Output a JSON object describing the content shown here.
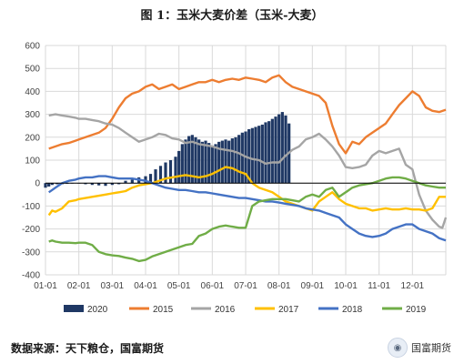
{
  "header": {
    "title": "图 1：玉米大麦价差（玉米-大麦）"
  },
  "footer": {
    "source": "数据来源：天下粮仓，国富期货",
    "brand": "国富期货",
    "brand_icon": "wechat-icon"
  },
  "colors": {
    "2020": "#1f3864",
    "2015": "#ed7d31",
    "2016": "#a5a5a5",
    "2017": "#ffc000",
    "2018": "#4472c4",
    "2019": "#70ad47",
    "grid": "#d9d9d9",
    "zero_line": "#000000"
  },
  "chart_data": {
    "type": "line",
    "title": "",
    "xlabel": "",
    "ylabel": "",
    "x_tick_labels": [
      "01-01",
      "02-01",
      "03-01",
      "04-01",
      "05-01",
      "06-01",
      "07-01",
      "08-01",
      "09-01",
      "10-01",
      "11-01",
      "12-01"
    ],
    "y_ticks": [
      600,
      500,
      400,
      300,
      200,
      100,
      0,
      -100,
      -200,
      -300,
      -400
    ],
    "ylim": [
      -400,
      600
    ],
    "x_unit": "month (1 = 01-01 … 13 = end of year)",
    "grid": true,
    "legend_position": "bottom",
    "legend": [
      "2020",
      "2015",
      "2016",
      "2017",
      "2018",
      "2019"
    ],
    "bar_series": {
      "name": "2020",
      "x": [
        1.0,
        1.1,
        1.2,
        1.35,
        1.5,
        1.65,
        1.8,
        2.0,
        2.2,
        2.4,
        2.6,
        2.8,
        3.0,
        3.2,
        3.4,
        3.6,
        3.8,
        4.0,
        4.15,
        4.3,
        4.45,
        4.6,
        4.75,
        4.9,
        5.0,
        5.1,
        5.2,
        5.3,
        5.4,
        5.5,
        5.6,
        5.7,
        5.8,
        5.9,
        6.0,
        6.1,
        6.2,
        6.3,
        6.4,
        6.5,
        6.6,
        6.7,
        6.8,
        6.9,
        7.0,
        7.1,
        7.2,
        7.3,
        7.4,
        7.5,
        7.6,
        7.7,
        7.8,
        7.9,
        8.0,
        8.1,
        8.2,
        8.3
      ],
      "values": [
        -20,
        -15,
        -8,
        -5,
        -5,
        -3,
        -2,
        0,
        -5,
        -8,
        -10,
        -12,
        -8,
        -5,
        10,
        15,
        25,
        30,
        40,
        60,
        75,
        90,
        100,
        115,
        140,
        170,
        190,
        205,
        210,
        200,
        190,
        180,
        185,
        175,
        160,
        170,
        180,
        185,
        190,
        185,
        195,
        200,
        210,
        220,
        225,
        235,
        240,
        245,
        250,
        255,
        265,
        270,
        280,
        290,
        300,
        310,
        295,
        260
      ]
    },
    "series": [
      {
        "name": "2015",
        "x": [
          1.1,
          1.2,
          1.3,
          1.5,
          1.7,
          1.9,
          2.0,
          2.2,
          2.4,
          2.6,
          2.8,
          3.0,
          3.2,
          3.4,
          3.6,
          3.8,
          4.0,
          4.2,
          4.4,
          4.6,
          4.8,
          5.0,
          5.2,
          5.4,
          5.6,
          5.8,
          6.0,
          6.2,
          6.4,
          6.6,
          6.8,
          7.0,
          7.2,
          7.4,
          7.6,
          7.8,
          8.0,
          8.2,
          8.4,
          8.6,
          8.8,
          9.0,
          9.2,
          9.4,
          9.6,
          9.8,
          10.0,
          10.2,
          10.4,
          10.6,
          10.8,
          11.0,
          11.2,
          11.4,
          11.6,
          11.8,
          12.0,
          12.2,
          12.4,
          12.6,
          12.8,
          13.0
        ],
        "values": [
          150,
          155,
          160,
          170,
          175,
          185,
          190,
          200,
          210,
          220,
          240,
          280,
          330,
          370,
          390,
          400,
          420,
          430,
          410,
          420,
          430,
          410,
          420,
          430,
          440,
          440,
          450,
          440,
          450,
          455,
          450,
          460,
          455,
          450,
          440,
          460,
          470,
          440,
          420,
          410,
          400,
          390,
          380,
          350,
          250,
          170,
          130,
          180,
          170,
          200,
          220,
          240,
          260,
          300,
          340,
          370,
          400,
          380,
          330,
          315,
          310,
          320
        ]
      },
      {
        "name": "2016",
        "x": [
          1.1,
          1.3,
          1.5,
          1.7,
          1.9,
          2.0,
          2.2,
          2.4,
          2.6,
          2.8,
          3.0,
          3.2,
          3.4,
          3.6,
          3.8,
          4.0,
          4.2,
          4.4,
          4.6,
          4.8,
          5.0,
          5.2,
          5.4,
          5.6,
          5.8,
          6.0,
          6.2,
          6.4,
          6.6,
          6.8,
          7.0,
          7.2,
          7.4,
          7.6,
          7.8,
          8.0,
          8.2,
          8.4,
          8.6,
          8.8,
          9.0,
          9.2,
          9.4,
          9.6,
          9.8,
          10.0,
          10.2,
          10.4,
          10.6,
          10.8,
          11.0,
          11.2,
          11.4,
          11.6,
          11.8,
          12.0,
          12.2,
          12.4,
          12.6,
          12.8,
          12.9,
          13.0
        ],
        "values": [
          295,
          300,
          295,
          290,
          285,
          280,
          280,
          275,
          270,
          260,
          255,
          240,
          220,
          200,
          180,
          190,
          200,
          215,
          210,
          195,
          190,
          175,
          180,
          170,
          165,
          160,
          150,
          145,
          140,
          130,
          115,
          105,
          100,
          85,
          90,
          90,
          120,
          145,
          160,
          190,
          200,
          215,
          190,
          160,
          120,
          70,
          65,
          70,
          80,
          120,
          140,
          130,
          140,
          150,
          80,
          60,
          -50,
          -120,
          -160,
          -190,
          -195,
          -150
        ]
      },
      {
        "name": "2017",
        "x": [
          1.1,
          1.2,
          1.3,
          1.5,
          1.7,
          1.9,
          2.0,
          2.2,
          2.4,
          2.6,
          2.8,
          3.0,
          3.2,
          3.4,
          3.6,
          3.8,
          4.0,
          4.2,
          4.4,
          4.6,
          4.8,
          5.0,
          5.2,
          5.4,
          5.6,
          5.8,
          6.0,
          6.2,
          6.4,
          6.6,
          6.8,
          7.0,
          7.2,
          7.4,
          7.6,
          7.8,
          8.0,
          8.2,
          8.4,
          8.6,
          8.8,
          9.0,
          9.2,
          9.4,
          9.6,
          9.8,
          10.0,
          10.2,
          10.4,
          10.6,
          10.8,
          11.0,
          11.2,
          11.4,
          11.6,
          11.8,
          12.0,
          12.2,
          12.4,
          12.6,
          12.8,
          13.0
        ],
        "values": [
          -140,
          -120,
          -125,
          -110,
          -80,
          -75,
          -70,
          -65,
          -60,
          -55,
          -50,
          -45,
          -40,
          -35,
          -20,
          -10,
          -5,
          0,
          10,
          20,
          25,
          30,
          35,
          30,
          25,
          30,
          40,
          55,
          70,
          65,
          50,
          40,
          0,
          -20,
          -30,
          -40,
          -60,
          -80,
          -90,
          -100,
          -110,
          -120,
          -80,
          -60,
          -40,
          -70,
          -90,
          -100,
          -110,
          -110,
          -120,
          -115,
          -110,
          -115,
          -115,
          -110,
          -115,
          -115,
          -120,
          -110,
          -60,
          -60
        ]
      },
      {
        "name": "2018",
        "x": [
          1.1,
          1.2,
          1.3,
          1.5,
          1.7,
          1.9,
          2.0,
          2.2,
          2.4,
          2.6,
          2.8,
          3.0,
          3.2,
          3.4,
          3.6,
          3.8,
          4.0,
          4.2,
          4.4,
          4.6,
          4.8,
          5.0,
          5.2,
          5.4,
          5.6,
          5.8,
          6.0,
          6.2,
          6.4,
          6.6,
          6.8,
          7.0,
          7.2,
          7.4,
          7.6,
          7.8,
          8.0,
          8.2,
          8.4,
          8.6,
          8.8,
          9.0,
          9.2,
          9.4,
          9.6,
          9.8,
          10.0,
          10.2,
          10.4,
          10.6,
          10.8,
          11.0,
          11.2,
          11.4,
          11.6,
          11.8,
          12.0,
          12.2,
          12.4,
          12.6,
          12.8,
          13.0
        ],
        "values": [
          -40,
          -30,
          -20,
          0,
          10,
          15,
          20,
          25,
          25,
          30,
          30,
          25,
          20,
          20,
          20,
          15,
          10,
          0,
          -10,
          -20,
          -25,
          -30,
          -30,
          -35,
          -40,
          -40,
          -45,
          -50,
          -55,
          -60,
          -65,
          -65,
          -70,
          -75,
          -80,
          -80,
          -85,
          -90,
          -95,
          -100,
          -110,
          -115,
          -120,
          -130,
          -140,
          -150,
          -180,
          -200,
          -220,
          -230,
          -235,
          -230,
          -220,
          -200,
          -190,
          -180,
          -180,
          -200,
          -210,
          -220,
          -240,
          -250
        ]
      },
      {
        "name": "2019",
        "x": [
          1.1,
          1.2,
          1.3,
          1.5,
          1.7,
          1.9,
          2.0,
          2.2,
          2.4,
          2.6,
          2.8,
          3.0,
          3.2,
          3.4,
          3.6,
          3.8,
          4.0,
          4.2,
          4.4,
          4.6,
          4.8,
          5.0,
          5.2,
          5.4,
          5.6,
          5.8,
          6.0,
          6.2,
          6.4,
          6.6,
          6.8,
          7.0,
          7.2,
          7.4,
          7.6,
          7.8,
          8.0,
          8.2,
          8.4,
          8.6,
          8.8,
          9.0,
          9.2,
          9.4,
          9.6,
          9.8,
          10.0,
          10.2,
          10.4,
          10.6,
          10.8,
          11.0,
          11.2,
          11.4,
          11.6,
          11.8,
          12.0,
          12.2,
          12.4,
          12.6,
          12.8,
          13.0
        ],
        "values": [
          -255,
          -250,
          -255,
          -260,
          -260,
          -262,
          -260,
          -260,
          -270,
          -300,
          -310,
          -315,
          -318,
          -325,
          -330,
          -340,
          -335,
          -320,
          -310,
          -300,
          -290,
          -280,
          -270,
          -265,
          -230,
          -220,
          -200,
          -190,
          -185,
          -190,
          -195,
          -195,
          -100,
          -80,
          -75,
          -70,
          -70,
          -70,
          -75,
          -80,
          -60,
          -50,
          -60,
          -30,
          -20,
          -60,
          -40,
          -20,
          -10,
          -5,
          0,
          10,
          20,
          25,
          25,
          20,
          10,
          0,
          -10,
          -15,
          -20,
          -20
        ]
      }
    ]
  }
}
